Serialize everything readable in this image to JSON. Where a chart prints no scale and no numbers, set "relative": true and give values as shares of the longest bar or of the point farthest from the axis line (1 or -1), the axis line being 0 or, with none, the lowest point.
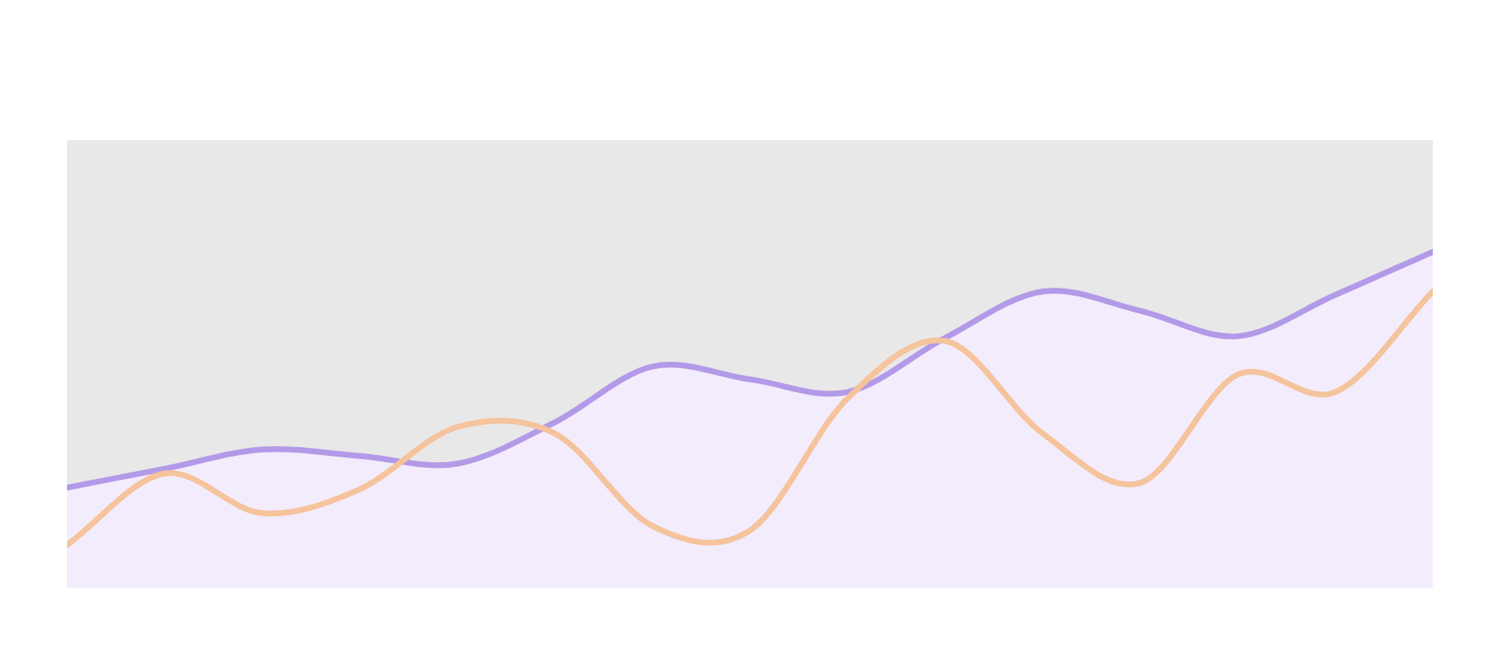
{
  "chart_data": {
    "type": "line",
    "relative": true,
    "categories": [
      null,
      null,
      null,
      null,
      null,
      null,
      null,
      null,
      null,
      null,
      null,
      null,
      null,
      null,
      null
    ],
    "series": [
      {
        "type": "line",
        "color": "#f5c39c",
        "values": [
          0.128,
          0.341,
          0.223,
          0.294,
          0.479,
          0.46,
          0.185,
          0.171,
          0.564,
          0.735,
          0.46,
          0.313,
          0.635,
          0.583,
          0.882
        ]
      },
      {
        "type": "area",
        "color": "#b39ae8",
        "values": [
          0.299,
          0.355,
          0.412,
          0.393,
          0.37,
          0.493,
          0.659,
          0.621,
          0.583,
          0.744,
          0.882,
          0.825,
          0.749,
          0.872,
          1
        ]
      }
    ],
    "grid": false,
    "legend": false
  }
}
